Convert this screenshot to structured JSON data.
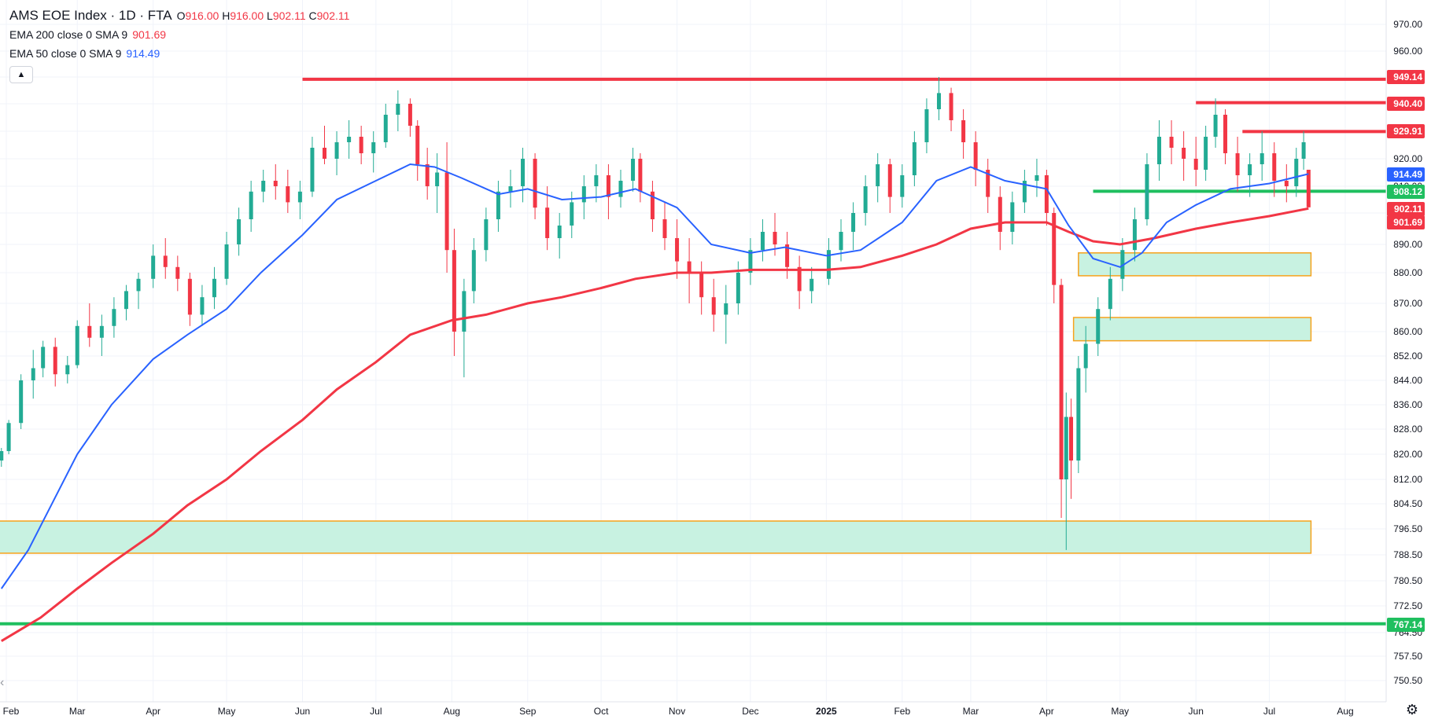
{
  "header": {
    "symbol": "AMS EOE Index · 1D · FTA",
    "open_label": "O",
    "open": "916.00",
    "high_label": "H",
    "high": "916.00",
    "low_label": "L",
    "low": "902.11",
    "close_label": "C",
    "close": "902.11"
  },
  "indicators": [
    {
      "label": "EMA 200 close 0 SMA 9",
      "value": "901.69",
      "color": "#f23645"
    },
    {
      "label": "EMA 50 close 0 SMA 9",
      "value": "914.49",
      "color": "#2962ff"
    }
  ],
  "controls": {
    "collapse_icon": "chevron-up-icon",
    "settings_icon": "gear-icon",
    "scroll_left_icon": "chevron-left-icon"
  },
  "colors": {
    "up": "#22ab94",
    "down": "#f23645",
    "ema50": "#2962ff",
    "ema200": "#f23645",
    "resistance": "#f23645",
    "support": "#1fbf5f",
    "zone_fill": "#c8f2e1",
    "zone_border": "#f7a21b"
  },
  "chart_data": {
    "type": "candlestick",
    "title": "AMS EOE Index · 1D · FTA",
    "y_ticks": [
      "970.00",
      "960.00",
      "950.00",
      "940.00",
      "930.00",
      "920.00",
      "910.00",
      "900.00",
      "890.00",
      "880.00",
      "870.00",
      "860.00",
      "852.00",
      "844.00",
      "836.00",
      "828.00",
      "820.00",
      "812.00",
      "804.50",
      "796.50",
      "788.50",
      "780.50",
      "772.50",
      "764.50",
      "757.50",
      "750.50"
    ],
    "x_ticks": [
      "Feb",
      "Mar",
      "Apr",
      "May",
      "Jun",
      "Jul",
      "Aug",
      "Sep",
      "Oct",
      "Nov",
      "Dec",
      "2025",
      "Feb",
      "Mar",
      "Apr",
      "May",
      "Jun",
      "Jul",
      "Aug"
    ],
    "ylim": [
      745,
      980
    ],
    "price_labels": [
      {
        "value": "949.14",
        "color": "#f23645"
      },
      {
        "value": "940.40",
        "color": "#f23645"
      },
      {
        "value": "929.91",
        "color": "#f23645"
      },
      {
        "value": "914.49",
        "color": "#2962ff"
      },
      {
        "value": "908.12",
        "color": "#1fbf5f"
      },
      {
        "value": "902.11",
        "color": "#f23645"
      },
      {
        "value": "901.69",
        "color": "#f23645"
      },
      {
        "value": "767.14",
        "color": "#1fbf5f"
      }
    ],
    "horizontal_lines": [
      {
        "value": 949.14,
        "from": "2024-06-01",
        "to": "2025-07-31",
        "color": "#f23645"
      },
      {
        "value": 940.4,
        "from": "2025-06-01",
        "to": "2025-07-31",
        "color": "#f23645"
      },
      {
        "value": 929.91,
        "from": "2025-06-20",
        "to": "2025-07-31",
        "color": "#f23645"
      },
      {
        "value": 908.12,
        "from": "2025-04-20",
        "to": "2025-07-31",
        "color": "#1fbf5f"
      },
      {
        "value": 767.14,
        "from": "2024-01-29",
        "to": "2025-08-20",
        "color": "#1fbf5f"
      }
    ],
    "zones": [
      {
        "low": 789,
        "high": 799,
        "from": "2024-01-29",
        "to": "2025-07-18"
      },
      {
        "low": 879,
        "high": 887,
        "from": "2025-04-14",
        "to": "2025-07-18"
      },
      {
        "low": 857,
        "high": 865,
        "from": "2025-04-12",
        "to": "2025-07-18"
      }
    ],
    "ema200": [
      [
        "2024-01-30",
        762
      ],
      [
        "2024-02-15",
        769
      ],
      [
        "2024-03-01",
        778
      ],
      [
        "2024-03-15",
        786
      ],
      [
        "2024-04-01",
        795
      ],
      [
        "2024-04-15",
        804
      ],
      [
        "2024-05-01",
        812
      ],
      [
        "2024-05-15",
        821
      ],
      [
        "2024-06-01",
        831
      ],
      [
        "2024-06-15",
        841
      ],
      [
        "2024-07-01",
        850
      ],
      [
        "2024-07-15",
        859
      ],
      [
        "2024-08-01",
        864
      ],
      [
        "2024-08-15",
        866
      ],
      [
        "2024-09-01",
        870
      ],
      [
        "2024-09-15",
        872
      ],
      [
        "2024-10-01",
        875
      ],
      [
        "2024-10-15",
        878
      ],
      [
        "2024-11-01",
        880
      ],
      [
        "2024-11-15",
        880
      ],
      [
        "2024-12-01",
        881
      ],
      [
        "2024-12-15",
        881
      ],
      [
        "2025-01-01",
        881
      ],
      [
        "2025-01-15",
        882
      ],
      [
        "2025-02-01",
        886
      ],
      [
        "2025-02-15",
        890
      ],
      [
        "2025-03-01",
        895
      ],
      [
        "2025-03-15",
        897
      ],
      [
        "2025-04-01",
        897
      ],
      [
        "2025-04-10",
        894
      ],
      [
        "2025-04-20",
        891
      ],
      [
        "2025-05-01",
        890
      ],
      [
        "2025-05-15",
        892
      ],
      [
        "2025-06-01",
        895
      ],
      [
        "2025-06-15",
        897
      ],
      [
        "2025-07-01",
        899
      ],
      [
        "2025-07-17",
        901.69
      ]
    ],
    "ema50": [
      [
        "2024-01-30",
        778
      ],
      [
        "2024-02-10",
        790
      ],
      [
        "2024-02-20",
        805
      ],
      [
        "2024-03-01",
        820
      ],
      [
        "2024-03-15",
        836
      ],
      [
        "2024-04-01",
        851
      ],
      [
        "2024-04-15",
        859
      ],
      [
        "2024-05-01",
        868
      ],
      [
        "2024-05-15",
        880
      ],
      [
        "2024-06-01",
        893
      ],
      [
        "2024-06-15",
        905
      ],
      [
        "2024-07-01",
        912
      ],
      [
        "2024-07-15",
        918
      ],
      [
        "2024-07-25",
        917
      ],
      [
        "2024-08-05",
        913
      ],
      [
        "2024-08-20",
        907
      ],
      [
        "2024-09-01",
        909
      ],
      [
        "2024-09-15",
        905
      ],
      [
        "2024-10-01",
        906
      ],
      [
        "2024-10-15",
        909
      ],
      [
        "2024-11-01",
        902
      ],
      [
        "2024-11-15",
        890
      ],
      [
        "2024-12-01",
        887
      ],
      [
        "2024-12-15",
        889
      ],
      [
        "2025-01-01",
        886
      ],
      [
        "2025-01-15",
        888
      ],
      [
        "2025-02-01",
        897
      ],
      [
        "2025-02-15",
        912
      ],
      [
        "2025-03-01",
        917
      ],
      [
        "2025-03-15",
        912
      ],
      [
        "2025-04-01",
        909
      ],
      [
        "2025-04-10",
        896
      ],
      [
        "2025-04-20",
        885
      ],
      [
        "2025-05-01",
        882
      ],
      [
        "2025-05-10",
        887
      ],
      [
        "2025-05-20",
        897
      ],
      [
        "2025-06-01",
        903
      ],
      [
        "2025-06-15",
        909
      ],
      [
        "2025-07-01",
        911
      ],
      [
        "2025-07-17",
        914.49
      ]
    ],
    "candles": [
      [
        "2024-01-30",
        818,
        822,
        816,
        821
      ],
      [
        "2024-02-02",
        821,
        831,
        820,
        830
      ],
      [
        "2024-02-07",
        830,
        846,
        828,
        844
      ],
      [
        "2024-02-12",
        844,
        854,
        838,
        848
      ],
      [
        "2024-02-16",
        848,
        857,
        845,
        855
      ],
      [
        "2024-02-21",
        855,
        858,
        842,
        846
      ],
      [
        "2024-02-26",
        846,
        852,
        843,
        849
      ],
      [
        "2024-03-01",
        849,
        864,
        848,
        862
      ],
      [
        "2024-03-06",
        862,
        870,
        855,
        858
      ],
      [
        "2024-03-11",
        858,
        866,
        852,
        862
      ],
      [
        "2024-03-16",
        862,
        872,
        858,
        868
      ],
      [
        "2024-03-21",
        868,
        876,
        864,
        874
      ],
      [
        "2024-03-26",
        874,
        880,
        868,
        878
      ],
      [
        "2024-04-01",
        878,
        890,
        875,
        886
      ],
      [
        "2024-04-06",
        886,
        892,
        878,
        882
      ],
      [
        "2024-04-11",
        882,
        886,
        874,
        878
      ],
      [
        "2024-04-16",
        878,
        880,
        862,
        866
      ],
      [
        "2024-04-21",
        866,
        876,
        862,
        872
      ],
      [
        "2024-04-26",
        872,
        882,
        868,
        878
      ],
      [
        "2024-05-01",
        878,
        894,
        876,
        890
      ],
      [
        "2024-05-06",
        890,
        902,
        886,
        898
      ],
      [
        "2024-05-11",
        898,
        912,
        894,
        908
      ],
      [
        "2024-05-16",
        908,
        916,
        904,
        912
      ],
      [
        "2024-05-21",
        912,
        918,
        905,
        910
      ],
      [
        "2024-05-26",
        910,
        916,
        900,
        904
      ],
      [
        "2024-05-31",
        904,
        912,
        898,
        908
      ],
      [
        "2024-06-05",
        908,
        928,
        906,
        924
      ],
      [
        "2024-06-10",
        924,
        932,
        918,
        920
      ],
      [
        "2024-06-15",
        920,
        930,
        914,
        926
      ],
      [
        "2024-06-20",
        926,
        934,
        920,
        928
      ],
      [
        "2024-06-25",
        928,
        932,
        918,
        922
      ],
      [
        "2024-06-30",
        922,
        930,
        915,
        926
      ],
      [
        "2024-07-05",
        926,
        940,
        924,
        936
      ],
      [
        "2024-07-10",
        936,
        945,
        930,
        940
      ],
      [
        "2024-07-15",
        940,
        942,
        928,
        932
      ],
      [
        "2024-07-18",
        932,
        934,
        912,
        918
      ],
      [
        "2024-07-22",
        918,
        924,
        905,
        910
      ],
      [
        "2024-07-26",
        910,
        922,
        900,
        915
      ],
      [
        "2024-07-30",
        915,
        926,
        880,
        888
      ],
      [
        "2024-08-02",
        888,
        895,
        852,
        860
      ],
      [
        "2024-08-06",
        860,
        878,
        845,
        874
      ],
      [
        "2024-08-10",
        874,
        892,
        870,
        888
      ],
      [
        "2024-08-15",
        888,
        902,
        884,
        898
      ],
      [
        "2024-08-20",
        898,
        912,
        894,
        908
      ],
      [
        "2024-08-25",
        908,
        916,
        902,
        910
      ],
      [
        "2024-08-30",
        910,
        924,
        904,
        920
      ],
      [
        "2024-09-04",
        920,
        922,
        898,
        902
      ],
      [
        "2024-09-09",
        902,
        910,
        888,
        892
      ],
      [
        "2024-09-14",
        892,
        900,
        885,
        896
      ],
      [
        "2024-09-19",
        896,
        908,
        892,
        904
      ],
      [
        "2024-09-24",
        904,
        914,
        898,
        910
      ],
      [
        "2024-09-29",
        910,
        918,
        904,
        914
      ],
      [
        "2024-10-04",
        914,
        918,
        898,
        906
      ],
      [
        "2024-10-09",
        906,
        916,
        902,
        912
      ],
      [
        "2024-10-14",
        912,
        924,
        908,
        920
      ],
      [
        "2024-10-17",
        920,
        922,
        904,
        908
      ],
      [
        "2024-10-22",
        908,
        912,
        894,
        898
      ],
      [
        "2024-10-27",
        898,
        904,
        888,
        892
      ],
      [
        "2024-11-01",
        892,
        898,
        878,
        884
      ],
      [
        "2024-11-06",
        884,
        892,
        870,
        880
      ],
      [
        "2024-11-11",
        880,
        884,
        866,
        872
      ],
      [
        "2024-11-16",
        872,
        878,
        860,
        866
      ],
      [
        "2024-11-21",
        866,
        876,
        856,
        870
      ],
      [
        "2024-11-26",
        870,
        884,
        866,
        880
      ],
      [
        "2024-12-01",
        880,
        892,
        876,
        888
      ],
      [
        "2024-12-06",
        888,
        898,
        884,
        894
      ],
      [
        "2024-12-11",
        894,
        900,
        886,
        890
      ],
      [
        "2024-12-16",
        890,
        894,
        878,
        882
      ],
      [
        "2024-12-21",
        882,
        886,
        868,
        874
      ],
      [
        "2024-12-26",
        874,
        882,
        870,
        878
      ],
      [
        "2025-01-02",
        878,
        892,
        876,
        888
      ],
      [
        "2025-01-07",
        888,
        898,
        884,
        894
      ],
      [
        "2025-01-12",
        894,
        904,
        888,
        900
      ],
      [
        "2025-01-17",
        900,
        914,
        896,
        910
      ],
      [
        "2025-01-22",
        910,
        922,
        904,
        918
      ],
      [
        "2025-01-27",
        918,
        920,
        900,
        906
      ],
      [
        "2025-02-01",
        906,
        918,
        902,
        914
      ],
      [
        "2025-02-06",
        914,
        930,
        910,
        926
      ],
      [
        "2025-02-11",
        926,
        942,
        922,
        938
      ],
      [
        "2025-02-16",
        938,
        950,
        934,
        944
      ],
      [
        "2025-02-21",
        944,
        946,
        930,
        934
      ],
      [
        "2025-02-26",
        934,
        938,
        920,
        926
      ],
      [
        "2025-03-03",
        926,
        930,
        910,
        916
      ],
      [
        "2025-03-08",
        916,
        920,
        900,
        906
      ],
      [
        "2025-03-13",
        906,
        910,
        888,
        894
      ],
      [
        "2025-03-18",
        894,
        908,
        890,
        904
      ],
      [
        "2025-03-23",
        904,
        916,
        900,
        912
      ],
      [
        "2025-03-28",
        912,
        920,
        906,
        914
      ],
      [
        "2025-04-01",
        914,
        916,
        896,
        900
      ],
      [
        "2025-04-04",
        900,
        902,
        870,
        876
      ],
      [
        "2025-04-07",
        876,
        878,
        800,
        812
      ],
      [
        "2025-04-09",
        812,
        840,
        790,
        832
      ],
      [
        "2025-04-11",
        832,
        838,
        806,
        818
      ],
      [
        "2025-04-14",
        818,
        852,
        814,
        848
      ],
      [
        "2025-04-17",
        848,
        862,
        840,
        856
      ],
      [
        "2025-04-22",
        856,
        872,
        852,
        868
      ],
      [
        "2025-04-27",
        868,
        882,
        864,
        878
      ],
      [
        "2025-05-02",
        878,
        892,
        874,
        888
      ],
      [
        "2025-05-07",
        888,
        902,
        884,
        898
      ],
      [
        "2025-05-12",
        898,
        922,
        896,
        918
      ],
      [
        "2025-05-17",
        918,
        934,
        912,
        928
      ],
      [
        "2025-05-22",
        928,
        934,
        918,
        924
      ],
      [
        "2025-05-27",
        924,
        930,
        912,
        920
      ],
      [
        "2025-06-01",
        920,
        928,
        910,
        916
      ],
      [
        "2025-06-05",
        916,
        932,
        912,
        928
      ],
      [
        "2025-06-09",
        928,
        942,
        924,
        936
      ],
      [
        "2025-06-13",
        936,
        938,
        918,
        922
      ],
      [
        "2025-06-18",
        922,
        928,
        908,
        914
      ],
      [
        "2025-06-23",
        914,
        922,
        906,
        918
      ],
      [
        "2025-06-28",
        918,
        930,
        912,
        922
      ],
      [
        "2025-07-03",
        922,
        926,
        906,
        912
      ],
      [
        "2025-07-08",
        912,
        918,
        904,
        910
      ],
      [
        "2025-07-12",
        910,
        924,
        906,
        920
      ],
      [
        "2025-07-15",
        920,
        930,
        916,
        926
      ],
      [
        "2025-07-17",
        916,
        916,
        902.11,
        902.11
      ]
    ]
  }
}
